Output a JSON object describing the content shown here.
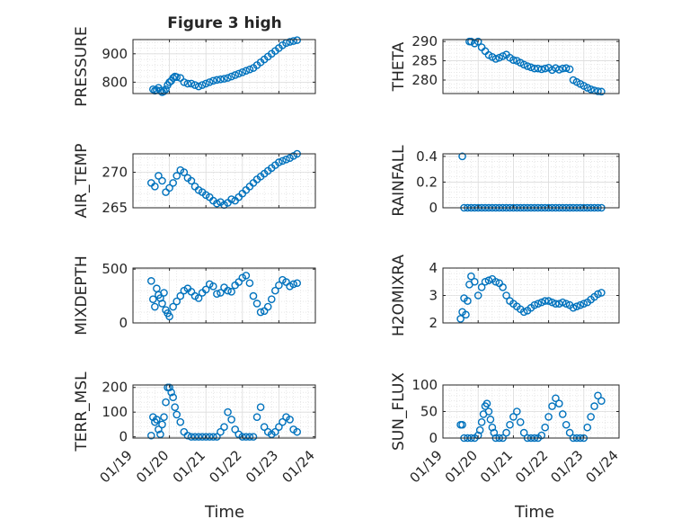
{
  "title": "Figure 3 high",
  "shared_xlabel": "Time",
  "x_ticks": [
    "01/19",
    "01/20",
    "01/21",
    "01/22",
    "01/23",
    "01/24"
  ],
  "chart_data": [
    {
      "type": "scatter",
      "key": "pressure",
      "ylabel": "PRESSURE",
      "title": "Figure 3 high",
      "ylim": [
        760,
        950
      ],
      "yticks": [
        800,
        900
      ],
      "xlim": [
        0,
        5
      ],
      "grid": true,
      "color": "#0072BD",
      "x": [
        0.55,
        0.6,
        0.65,
        0.7,
        0.75,
        0.8,
        0.85,
        0.9,
        0.95,
        1.0,
        1.05,
        1.1,
        1.15,
        1.2,
        1.3,
        1.4,
        1.5,
        1.6,
        1.7,
        1.8,
        1.9,
        2.0,
        2.1,
        2.2,
        2.3,
        2.4,
        2.5,
        2.6,
        2.7,
        2.8,
        2.9,
        3.0,
        3.1,
        3.2,
        3.3,
        3.4,
        3.5,
        3.6,
        3.7,
        3.8,
        3.9,
        4.0,
        4.1,
        4.2,
        4.3,
        4.4,
        4.5
      ],
      "y": [
        775,
        770,
        772,
        780,
        770,
        765,
        768,
        775,
        790,
        800,
        805,
        815,
        820,
        818,
        815,
        800,
        795,
        795,
        790,
        785,
        790,
        795,
        800,
        805,
        808,
        810,
        812,
        815,
        820,
        825,
        830,
        835,
        840,
        845,
        850,
        860,
        870,
        880,
        890,
        900,
        910,
        920,
        930,
        938,
        942,
        945,
        948
      ]
    },
    {
      "type": "scatter",
      "key": "theta",
      "ylabel": "THETA",
      "ylim": [
        276.5,
        290.5
      ],
      "yticks": [
        280,
        285,
        290
      ],
      "xlim": [
        0,
        5
      ],
      "grid": true,
      "color": "#0072BD",
      "x": [
        0.75,
        0.8,
        0.9,
        1.0,
        1.1,
        1.2,
        1.3,
        1.4,
        1.5,
        1.6,
        1.7,
        1.8,
        1.9,
        2.0,
        2.1,
        2.2,
        2.3,
        2.4,
        2.5,
        2.6,
        2.7,
        2.8,
        2.9,
        3.0,
        3.1,
        3.2,
        3.3,
        3.4,
        3.5,
        3.6,
        3.7,
        3.8,
        3.9,
        4.0,
        4.1,
        4.2,
        4.3,
        4.4,
        4.5
      ],
      "y": [
        290,
        290,
        289.5,
        290,
        288.5,
        287.5,
        286.5,
        286.0,
        285.5,
        285.8,
        286.2,
        286.6,
        285.8,
        285.2,
        285.0,
        284.5,
        284.0,
        283.6,
        283.3,
        283.0,
        283.0,
        282.8,
        283.0,
        283.2,
        282.6,
        283.1,
        282.7,
        283.0,
        283.1,
        282.8,
        280.0,
        279.5,
        279.0,
        278.5,
        278.0,
        277.6,
        277.3,
        277.1,
        277.0
      ]
    },
    {
      "type": "scatter",
      "key": "air_temp",
      "ylabel": "AIR_TEMP",
      "ylim": [
        265,
        272.6
      ],
      "yticks": [
        265,
        270
      ],
      "xlim": [
        0,
        5
      ],
      "grid": true,
      "color": "#0072BD",
      "x": [
        0.5,
        0.6,
        0.7,
        0.8,
        0.9,
        1.0,
        1.1,
        1.2,
        1.3,
        1.4,
        1.5,
        1.6,
        1.7,
        1.8,
        1.9,
        2.0,
        2.1,
        2.2,
        2.3,
        2.4,
        2.5,
        2.6,
        2.7,
        2.8,
        2.9,
        3.0,
        3.1,
        3.2,
        3.3,
        3.4,
        3.5,
        3.6,
        3.7,
        3.8,
        3.9,
        4.0,
        4.1,
        4.2,
        4.3,
        4.4,
        4.5
      ],
      "y": [
        268.5,
        268.0,
        269.5,
        268.8,
        267.2,
        267.8,
        268.5,
        269.5,
        270.3,
        270.0,
        269.2,
        268.8,
        268.0,
        267.5,
        267.2,
        266.8,
        266.5,
        266.0,
        265.6,
        265.8,
        265.4,
        265.7,
        266.2,
        266.0,
        266.5,
        267.0,
        267.5,
        268.0,
        268.5,
        269.0,
        269.4,
        269.8,
        270.2,
        270.6,
        271.0,
        271.4,
        271.6,
        271.8,
        272.0,
        272.3,
        272.6
      ]
    },
    {
      "type": "scatter",
      "key": "rainfall",
      "ylabel": "RAINFALL",
      "ylim": [
        0,
        0.42
      ],
      "yticks": [
        0,
        0.2,
        0.4
      ],
      "xlim": [
        0,
        5
      ],
      "grid": true,
      "color": "#0072BD",
      "x": [
        0.55,
        0.6,
        0.7,
        0.8,
        0.9,
        1.0,
        1.1,
        1.2,
        1.3,
        1.4,
        1.5,
        1.6,
        1.7,
        1.8,
        1.9,
        2.0,
        2.1,
        2.2,
        2.3,
        2.4,
        2.5,
        2.6,
        2.7,
        2.8,
        2.9,
        3.0,
        3.1,
        3.2,
        3.3,
        3.4,
        3.5,
        3.6,
        3.7,
        3.8,
        3.9,
        4.0,
        4.1,
        4.2,
        4.3,
        4.4,
        4.5
      ],
      "y": [
        0.4,
        0,
        0,
        0,
        0,
        0,
        0,
        0,
        0,
        0,
        0,
        0,
        0,
        0,
        0,
        0,
        0,
        0,
        0,
        0,
        0,
        0,
        0,
        0,
        0,
        0,
        0,
        0,
        0,
        0,
        0,
        0,
        0,
        0,
        0,
        0,
        0,
        0,
        0,
        0,
        0
      ]
    },
    {
      "type": "scatter",
      "key": "mixdepth",
      "ylabel": "MIXDEPTH",
      "ylim": [
        0,
        510
      ],
      "yticks": [
        0,
        500
      ],
      "xlim": [
        0,
        5
      ],
      "grid": true,
      "color": "#0072BD",
      "x": [
        0.5,
        0.55,
        0.6,
        0.65,
        0.7,
        0.75,
        0.8,
        0.85,
        0.9,
        0.95,
        1.0,
        1.1,
        1.2,
        1.3,
        1.4,
        1.5,
        1.6,
        1.7,
        1.8,
        1.9,
        2.0,
        2.1,
        2.2,
        2.3,
        2.4,
        2.5,
        2.6,
        2.7,
        2.8,
        2.9,
        3.0,
        3.1,
        3.2,
        3.3,
        3.4,
        3.5,
        3.6,
        3.7,
        3.8,
        3.9,
        4.0,
        4.1,
        4.2,
        4.3,
        4.4,
        4.5
      ],
      "y": [
        390,
        220,
        150,
        320,
        260,
        230,
        180,
        280,
        120,
        90,
        60,
        150,
        200,
        250,
        300,
        320,
        290,
        250,
        230,
        280,
        310,
        360,
        340,
        270,
        280,
        330,
        300,
        290,
        350,
        380,
        420,
        440,
        370,
        250,
        180,
        100,
        110,
        150,
        220,
        300,
        350,
        400,
        380,
        340,
        360,
        370
      ]
    },
    {
      "type": "scatter",
      "key": "h2omixra",
      "ylabel": "H2OMIXRA",
      "ylim": [
        2,
        4
      ],
      "yticks": [
        2,
        3,
        4
      ],
      "xlim": [
        0,
        5
      ],
      "grid": true,
      "color": "#0072BD",
      "x": [
        0.5,
        0.55,
        0.6,
        0.65,
        0.7,
        0.75,
        0.8,
        0.9,
        1.0,
        1.1,
        1.2,
        1.3,
        1.4,
        1.5,
        1.6,
        1.7,
        1.8,
        1.9,
        2.0,
        2.1,
        2.2,
        2.3,
        2.4,
        2.5,
        2.6,
        2.7,
        2.8,
        2.9,
        3.0,
        3.1,
        3.2,
        3.3,
        3.4,
        3.5,
        3.6,
        3.7,
        3.8,
        3.9,
        4.0,
        4.1,
        4.2,
        4.3,
        4.4,
        4.5
      ],
      "y": [
        2.15,
        2.4,
        2.9,
        2.3,
        2.8,
        3.4,
        3.7,
        3.5,
        3.0,
        3.3,
        3.5,
        3.55,
        3.6,
        3.5,
        3.45,
        3.3,
        3.0,
        2.8,
        2.7,
        2.6,
        2.5,
        2.4,
        2.45,
        2.55,
        2.65,
        2.7,
        2.75,
        2.8,
        2.8,
        2.75,
        2.7,
        2.7,
        2.75,
        2.7,
        2.65,
        2.55,
        2.6,
        2.65,
        2.7,
        2.75,
        2.85,
        2.95,
        3.05,
        3.1
      ]
    },
    {
      "type": "scatter",
      "key": "terr_msl",
      "ylabel": "TERR_MSL",
      "ylim": [
        -5,
        210
      ],
      "yticks": [
        0,
        100,
        200
      ],
      "xlim": [
        0,
        5
      ],
      "grid": true,
      "color": "#0072BD",
      "x": [
        0.5,
        0.55,
        0.6,
        0.65,
        0.7,
        0.75,
        0.8,
        0.85,
        0.9,
        0.95,
        1.0,
        1.05,
        1.1,
        1.15,
        1.2,
        1.3,
        1.4,
        1.5,
        1.6,
        1.7,
        1.8,
        1.9,
        2.0,
        2.1,
        2.2,
        2.3,
        2.4,
        2.5,
        2.6,
        2.7,
        2.8,
        2.9,
        3.0,
        3.1,
        3.2,
        3.3,
        3.4,
        3.5,
        3.6,
        3.7,
        3.8,
        3.9,
        4.0,
        4.1,
        4.2,
        4.3,
        4.4,
        4.5
      ],
      "y": [
        5,
        80,
        60,
        70,
        30,
        10,
        50,
        80,
        140,
        200,
        200,
        180,
        160,
        120,
        90,
        60,
        20,
        5,
        0,
        0,
        0,
        0,
        0,
        0,
        0,
        0,
        20,
        40,
        100,
        70,
        30,
        10,
        0,
        0,
        0,
        0,
        80,
        120,
        40,
        20,
        10,
        20,
        40,
        60,
        80,
        70,
        30,
        20
      ]
    },
    {
      "type": "scatter",
      "key": "sun_flux",
      "ylabel": "SUN_FLUX",
      "ylim": [
        0,
        100
      ],
      "yticks": [
        0,
        50,
        100
      ],
      "xlim": [
        0,
        5
      ],
      "grid": true,
      "color": "#0072BD",
      "x": [
        0.5,
        0.55,
        0.6,
        0.7,
        0.8,
        0.9,
        1.0,
        1.05,
        1.1,
        1.15,
        1.2,
        1.25,
        1.3,
        1.35,
        1.4,
        1.45,
        1.5,
        1.6,
        1.7,
        1.8,
        1.9,
        2.0,
        2.1,
        2.2,
        2.3,
        2.4,
        2.5,
        2.6,
        2.7,
        2.8,
        2.9,
        3.0,
        3.1,
        3.2,
        3.3,
        3.4,
        3.5,
        3.6,
        3.7,
        3.8,
        3.9,
        4.0,
        4.1,
        4.2,
        4.3,
        4.4,
        4.5
      ],
      "y": [
        25,
        25,
        0,
        0,
        0,
        0,
        5,
        15,
        30,
        45,
        60,
        65,
        50,
        35,
        20,
        10,
        0,
        0,
        0,
        10,
        25,
        40,
        50,
        30,
        10,
        0,
        0,
        0,
        0,
        5,
        20,
        40,
        60,
        75,
        65,
        45,
        25,
        10,
        0,
        0,
        0,
        0,
        20,
        40,
        60,
        80,
        70
      ]
    }
  ]
}
